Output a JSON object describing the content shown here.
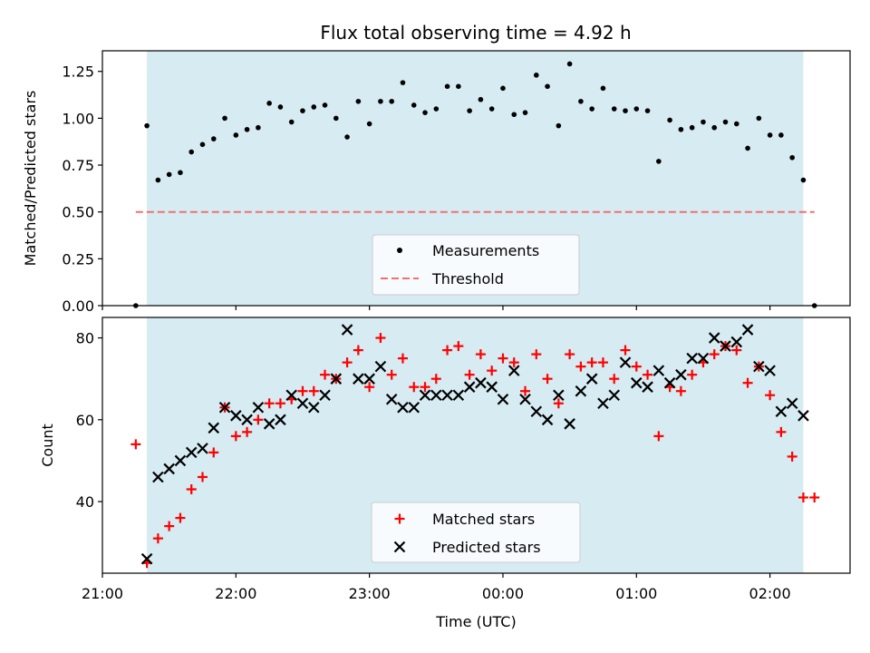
{
  "chart_data": [
    {
      "type": "scatter",
      "title": "Flux total observing time = 4.92 h",
      "xlabel": "",
      "ylabel": "Matched/Predicted stars",
      "ylim": [
        0,
        1.36
      ],
      "yticks": [
        "0.00",
        "0.25",
        "0.50",
        "0.75",
        "1.00",
        "1.25"
      ],
      "shaded_span": [
        "21:20",
        "02:15"
      ],
      "threshold": {
        "name": "Threshold",
        "value": 0.5,
        "x_range": [
          "21:15",
          "02:20"
        ],
        "color": "#f07070"
      },
      "legend": [
        "Measurements",
        "Threshold"
      ],
      "legend_position": "lower center",
      "series": [
        {
          "name": "Measurements",
          "color": "#000000",
          "points": [
            [
              "21:15",
              0.0
            ],
            [
              "21:20",
              0.96
            ],
            [
              "21:25",
              0.67
            ],
            [
              "21:30",
              0.7
            ],
            [
              "21:35",
              0.71
            ],
            [
              "21:40",
              0.82
            ],
            [
              "21:45",
              0.86
            ],
            [
              "21:50",
              0.89
            ],
            [
              "21:55",
              1.0
            ],
            [
              "22:00",
              0.91
            ],
            [
              "22:05",
              0.94
            ],
            [
              "22:10",
              0.95
            ],
            [
              "22:15",
              1.08
            ],
            [
              "22:20",
              1.06
            ],
            [
              "22:25",
              0.98
            ],
            [
              "22:30",
              1.04
            ],
            [
              "22:35",
              1.06
            ],
            [
              "22:40",
              1.07
            ],
            [
              "22:45",
              1.0
            ],
            [
              "22:50",
              0.9
            ],
            [
              "22:55",
              1.09
            ],
            [
              "23:00",
              0.97
            ],
            [
              "23:05",
              1.09
            ],
            [
              "23:10",
              1.09
            ],
            [
              "23:15",
              1.19
            ],
            [
              "23:20",
              1.07
            ],
            [
              "23:25",
              1.03
            ],
            [
              "23:30",
              1.05
            ],
            [
              "23:35",
              1.17
            ],
            [
              "23:40",
              1.17
            ],
            [
              "23:45",
              1.04
            ],
            [
              "23:50",
              1.1
            ],
            [
              "23:55",
              1.05
            ],
            [
              "00:00",
              1.16
            ],
            [
              "00:05",
              1.02
            ],
            [
              "00:10",
              1.03
            ],
            [
              "00:15",
              1.23
            ],
            [
              "00:20",
              1.17
            ],
            [
              "00:25",
              0.96
            ],
            [
              "00:30",
              1.29
            ],
            [
              "00:35",
              1.09
            ],
            [
              "00:40",
              1.05
            ],
            [
              "00:45",
              1.16
            ],
            [
              "00:50",
              1.05
            ],
            [
              "00:55",
              1.04
            ],
            [
              "01:00",
              1.05
            ],
            [
              "01:05",
              1.04
            ],
            [
              "01:10",
              0.77
            ],
            [
              "01:15",
              0.99
            ],
            [
              "01:20",
              0.94
            ],
            [
              "01:25",
              0.95
            ],
            [
              "01:30",
              0.98
            ],
            [
              "01:35",
              0.95
            ],
            [
              "01:40",
              0.98
            ],
            [
              "01:45",
              0.97
            ],
            [
              "01:50",
              0.84
            ],
            [
              "01:55",
              1.0
            ],
            [
              "02:00",
              0.91
            ],
            [
              "02:05",
              0.91
            ],
            [
              "02:10",
              0.79
            ],
            [
              "02:15",
              0.67
            ],
            [
              "02:20",
              0.0
            ]
          ]
        }
      ]
    },
    {
      "type": "scatter",
      "title": "",
      "xlabel": "Time (UTC)",
      "ylabel": "Count",
      "ylim": [
        22.5,
        85
      ],
      "yticks": [
        "40",
        "60",
        "80"
      ],
      "xticks": [
        "21:00",
        "22:00",
        "23:00",
        "00:00",
        "01:00",
        "02:00"
      ],
      "shaded_span": [
        "21:20",
        "02:15"
      ],
      "legend": [
        "Matched stars",
        "Predicted stars"
      ],
      "legend_position": "lower center",
      "series": [
        {
          "name": "Matched stars",
          "color": "#ff0000",
          "points": [
            [
              "21:15",
              54
            ],
            [
              "21:20",
              25
            ],
            [
              "21:25",
              31
            ],
            [
              "21:30",
              34
            ],
            [
              "21:35",
              36
            ],
            [
              "21:40",
              43
            ],
            [
              "21:45",
              46
            ],
            [
              "21:50",
              52
            ],
            [
              "21:55",
              63
            ],
            [
              "22:00",
              56
            ],
            [
              "22:05",
              57
            ],
            [
              "22:10",
              60
            ],
            [
              "22:15",
              64
            ],
            [
              "22:20",
              64
            ],
            [
              "22:25",
              65
            ],
            [
              "22:30",
              67
            ],
            [
              "22:35",
              67
            ],
            [
              "22:40",
              71
            ],
            [
              "22:45",
              70
            ],
            [
              "22:50",
              74
            ],
            [
              "22:55",
              77
            ],
            [
              "23:00",
              68
            ],
            [
              "23:05",
              80
            ],
            [
              "23:10",
              71
            ],
            [
              "23:15",
              75
            ],
            [
              "23:20",
              68
            ],
            [
              "23:25",
              68
            ],
            [
              "23:30",
              70
            ],
            [
              "23:35",
              77
            ],
            [
              "23:40",
              78
            ],
            [
              "23:45",
              71
            ],
            [
              "23:50",
              76
            ],
            [
              "23:55",
              72
            ],
            [
              "00:00",
              75
            ],
            [
              "00:05",
              74
            ],
            [
              "00:10",
              67
            ],
            [
              "00:15",
              76
            ],
            [
              "00:20",
              70
            ],
            [
              "00:25",
              64
            ],
            [
              "00:30",
              76
            ],
            [
              "00:35",
              73
            ],
            [
              "00:40",
              74
            ],
            [
              "00:45",
              74
            ],
            [
              "00:50",
              70
            ],
            [
              "00:55",
              77
            ],
            [
              "01:00",
              73
            ],
            [
              "01:05",
              71
            ],
            [
              "01:10",
              56
            ],
            [
              "01:15",
              68
            ],
            [
              "01:20",
              67
            ],
            [
              "01:25",
              71
            ],
            [
              "01:30",
              74
            ],
            [
              "01:35",
              76
            ],
            [
              "01:40",
              78
            ],
            [
              "01:45",
              77
            ],
            [
              "01:50",
              69
            ],
            [
              "01:55",
              73
            ],
            [
              "02:00",
              66
            ],
            [
              "02:05",
              57
            ],
            [
              "02:10",
              51
            ],
            [
              "02:15",
              41
            ],
            [
              "02:20",
              41
            ]
          ]
        },
        {
          "name": "Predicted stars",
          "color": "#000000",
          "points": [
            [
              "21:20",
              26
            ],
            [
              "21:25",
              46
            ],
            [
              "21:30",
              48
            ],
            [
              "21:35",
              50
            ],
            [
              "21:40",
              52
            ],
            [
              "21:45",
              53
            ],
            [
              "21:50",
              58
            ],
            [
              "21:55",
              63
            ],
            [
              "22:00",
              61
            ],
            [
              "22:05",
              60
            ],
            [
              "22:10",
              63
            ],
            [
              "22:15",
              59
            ],
            [
              "22:20",
              60
            ],
            [
              "22:25",
              66
            ],
            [
              "22:30",
              64
            ],
            [
              "22:35",
              63
            ],
            [
              "22:40",
              66
            ],
            [
              "22:45",
              70
            ],
            [
              "22:50",
              82
            ],
            [
              "22:55",
              70
            ],
            [
              "23:00",
              70
            ],
            [
              "23:05",
              73
            ],
            [
              "23:10",
              65
            ],
            [
              "23:15",
              63
            ],
            [
              "23:20",
              63
            ],
            [
              "23:25",
              66
            ],
            [
              "23:30",
              66
            ],
            [
              "23:35",
              66
            ],
            [
              "23:40",
              66
            ],
            [
              "23:45",
              68
            ],
            [
              "23:50",
              69
            ],
            [
              "23:55",
              68
            ],
            [
              "00:00",
              65
            ],
            [
              "00:05",
              72
            ],
            [
              "00:10",
              65
            ],
            [
              "00:15",
              62
            ],
            [
              "00:20",
              60
            ],
            [
              "00:25",
              66
            ],
            [
              "00:30",
              59
            ],
            [
              "00:35",
              67
            ],
            [
              "00:40",
              70
            ],
            [
              "00:45",
              64
            ],
            [
              "00:50",
              66
            ],
            [
              "00:55",
              74
            ],
            [
              "01:00",
              69
            ],
            [
              "01:05",
              68
            ],
            [
              "01:10",
              72
            ],
            [
              "01:15",
              69
            ],
            [
              "01:20",
              71
            ],
            [
              "01:25",
              75
            ],
            [
              "01:30",
              75
            ],
            [
              "01:35",
              80
            ],
            [
              "01:40",
              78
            ],
            [
              "01:45",
              79
            ],
            [
              "01:50",
              82
            ],
            [
              "01:55",
              73
            ],
            [
              "02:00",
              72
            ],
            [
              "02:05",
              62
            ],
            [
              "02:10",
              64
            ],
            [
              "02:15",
              61
            ]
          ]
        }
      ]
    }
  ]
}
